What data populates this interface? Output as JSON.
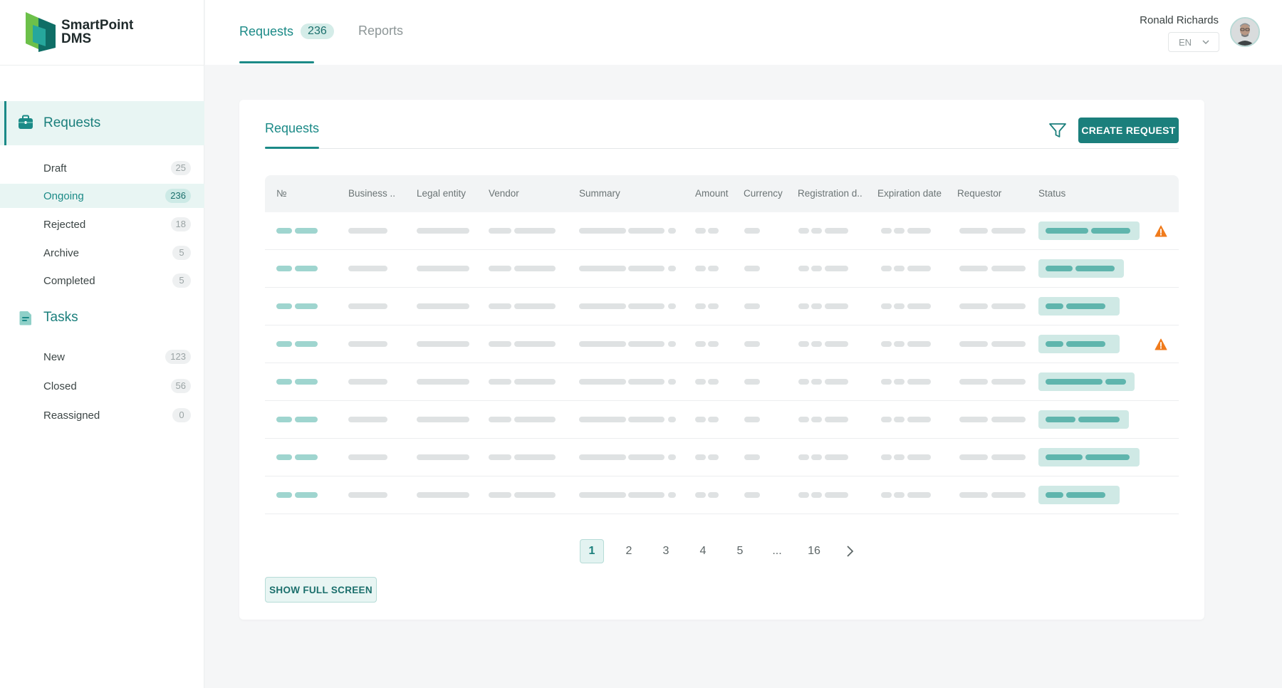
{
  "brand": {
    "name_line1": "SmartPoint",
    "name_line2": "DMS"
  },
  "sidebar": {
    "requests_label": "Requests",
    "tasks_label": "Tasks",
    "request_items": [
      {
        "label": "Draft",
        "count": "25"
      },
      {
        "label": "Ongoing",
        "count": "236"
      },
      {
        "label": "Rejected",
        "count": "18"
      },
      {
        "label": "Archive",
        "count": "5"
      },
      {
        "label": "Completed",
        "count": "5"
      }
    ],
    "task_items": [
      {
        "label": "New",
        "count": "123"
      },
      {
        "label": "Closed",
        "count": "56"
      },
      {
        "label": "Reassigned",
        "count": "0"
      }
    ]
  },
  "header": {
    "tabs": [
      {
        "label": "Requests",
        "badge": "236"
      },
      {
        "label": "Reports"
      }
    ],
    "user_name": "Ronald Richards",
    "language": "EN"
  },
  "card": {
    "title": "Requests",
    "create_button": "CREATE REQUEST",
    "show_full_screen": "SHOW FULL SCREEN"
  },
  "table": {
    "columns": [
      "№",
      "Business ..",
      "Legal entity",
      "Vendor",
      "Summary",
      "Amount",
      "Currency",
      "Registration d..",
      "Expiration date",
      "Requestor",
      "Status"
    ]
  },
  "pagination": {
    "pages": [
      "1",
      "2",
      "3",
      "4",
      "5",
      "...",
      "16"
    ],
    "current": "1"
  },
  "colors": {
    "accent": "#1b8a87",
    "accent_dark": "#1b7f7c",
    "accent_light": "#e8f5f3",
    "warning": "#f07b1c"
  },
  "icons": {
    "requests": "briefcase-icon",
    "tasks": "clipboard-icon",
    "filter": "filter-icon",
    "warning": "warning-icon",
    "next": "chevron-right-icon",
    "language": "chevron-down-icon"
  }
}
